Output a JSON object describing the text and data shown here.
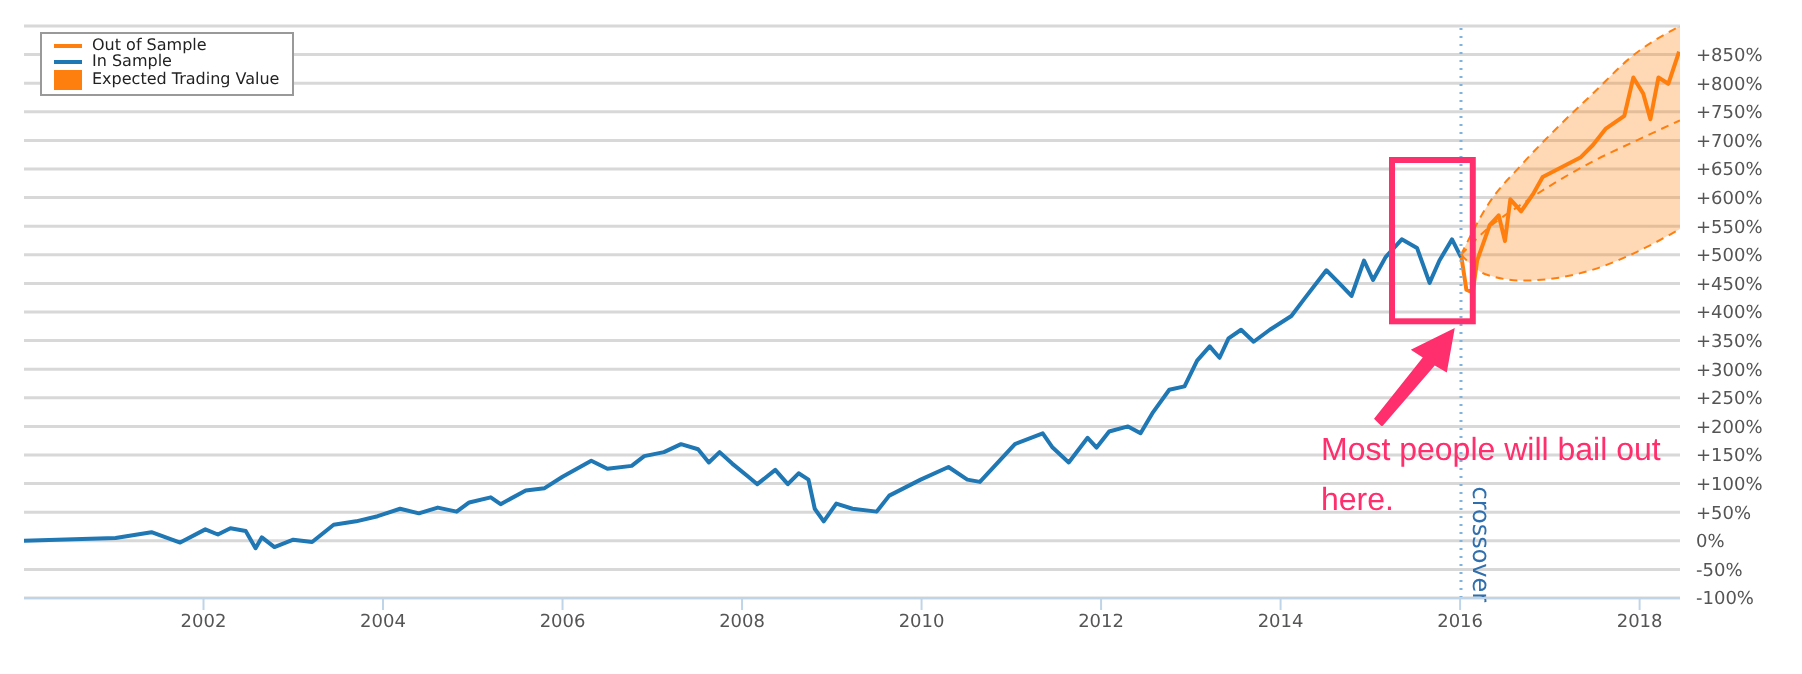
{
  "chart_data": {
    "type": "line",
    "xlim": [
      2000,
      2018.45
    ],
    "xticks": [
      2002,
      2004,
      2006,
      2008,
      2010,
      2012,
      2014,
      2016,
      2018
    ],
    "ylim": [
      -100,
      900
    ],
    "yticks": [
      {
        "value": -100,
        "label": "-100%"
      },
      {
        "value": -50,
        "label": "-50%"
      },
      {
        "value": 0,
        "label": "0%"
      },
      {
        "value": 50,
        "label": "+50%"
      },
      {
        "value": 100,
        "label": "+100%"
      },
      {
        "value": 150,
        "label": "+150%"
      },
      {
        "value": 200,
        "label": "+200%"
      },
      {
        "value": 250,
        "label": "+250%"
      },
      {
        "value": 300,
        "label": "+300%"
      },
      {
        "value": 350,
        "label": "+350%"
      },
      {
        "value": 400,
        "label": "+400%"
      },
      {
        "value": 450,
        "label": "+450%"
      },
      {
        "value": 500,
        "label": "+500%"
      },
      {
        "value": 550,
        "label": "+550%"
      },
      {
        "value": 600,
        "label": "+600%"
      },
      {
        "value": 650,
        "label": "+650%"
      },
      {
        "value": 700,
        "label": "+700%"
      },
      {
        "value": 750,
        "label": "+750%"
      },
      {
        "value": 800,
        "label": "+800%"
      },
      {
        "value": 850,
        "label": "+850%"
      },
      {
        "value": 900,
        "label": null
      }
    ],
    "grid": "y",
    "legend": "top left",
    "marker": "none",
    "series": [
      {
        "name": "Out of Sample",
        "color": "#ff7f0e",
        "x": [
          2016.01,
          2016.07,
          2016.14,
          2016.19,
          2016.33,
          2016.43,
          2016.5,
          2016.56,
          2016.68,
          2016.82,
          2016.92,
          2017.13,
          2017.34,
          2017.48,
          2017.62,
          2017.83,
          2017.93,
          2018.04,
          2018.12,
          2018.21,
          2018.32,
          2018.44
        ],
        "values": [
          501,
          439,
          434,
          490,
          552,
          569,
          524,
          597,
          576,
          608,
          636,
          653,
          670,
          692,
          720,
          743,
          810,
          782,
          737,
          810,
          799,
          855
        ]
      },
      {
        "name": "In Sample",
        "color": "#1f77b4",
        "x": [
          2000,
          2001.02,
          2001.42,
          2001.74,
          2002.02,
          2002.16,
          2002.3,
          2002.47,
          2002.58,
          2002.65,
          2002.79,
          2003.0,
          2003.21,
          2003.45,
          2003.7,
          2003.94,
          2004.19,
          2004.4,
          2004.61,
          2004.82,
          2004.96,
          2005.2,
          2005.31,
          2005.59,
          2005.8,
          2006.0,
          2006.32,
          2006.5,
          2006.77,
          2006.91,
          2007.13,
          2007.32,
          2007.51,
          2007.63,
          2007.75,
          2007.89,
          2008.07,
          2008.17,
          2008.37,
          2008.51,
          2008.63,
          2008.74,
          2008.81,
          2008.91,
          2009.05,
          2009.23,
          2009.5,
          2009.64,
          2009.99,
          2010.3,
          2010.51,
          2010.65,
          2011.04,
          2011.35,
          2011.46,
          2011.64,
          2011.85,
          2011.95,
          2012.09,
          2012.3,
          2012.44,
          2012.58,
          2012.76,
          2012.93,
          2013.07,
          2013.21,
          2013.32,
          2013.42,
          2013.56,
          2013.7,
          2013.88,
          2014.12,
          2014.26,
          2014.51,
          2014.65,
          2014.79,
          2014.93,
          2015.03,
          2015.17,
          2015.35,
          2015.52,
          2015.66,
          2015.77,
          2015.91,
          2016.01
        ],
        "values": [
          0,
          5,
          15,
          -3,
          20,
          11,
          22,
          17,
          -13,
          6,
          -11,
          2,
          -2,
          28,
          34,
          43,
          56,
          48,
          58,
          51,
          67,
          76,
          64,
          88,
          92,
          112,
          140,
          126,
          131,
          148,
          155,
          169,
          160,
          137,
          155,
          135,
          112,
          99,
          124,
          99,
          118,
          107,
          56,
          34,
          65,
          56,
          51,
          79,
          107,
          129,
          107,
          103,
          169,
          188,
          163,
          137,
          180,
          163,
          191,
          200,
          188,
          225,
          264,
          270,
          315,
          340,
          320,
          354,
          369,
          348,
          369,
          393,
          422,
          473,
          451,
          428,
          490,
          456,
          496,
          527,
          512,
          451,
          490,
          527,
          496
        ]
      },
      {
        "name": "Expected Trading Value",
        "type": "line",
        "color": "#ff7f0e",
        "line_style": "dashed",
        "x": [
          2016.01,
          2016.3,
          2016.7,
          2017.1,
          2017.5,
          2017.9,
          2018.45
        ],
        "values": [
          500,
          545,
          590,
          630,
          665,
          695,
          735
        ],
        "lower": [
          500,
          465,
          455,
          460,
          475,
          500,
          545
        ],
        "upper": [
          500,
          585,
          660,
          725,
          785,
          845,
          900
        ]
      },
      {
        "type": "line",
        "color": "#ff7f0e",
        "line_style": "dashed",
        "x": [
          2016.01,
          2016.3,
          2016.7,
          2017.1,
          2017.5,
          2017.9,
          2018.45
        ],
        "values": [
          500,
          585,
          660,
          725,
          785,
          845,
          900
        ]
      },
      {
        "type": "line",
        "color": "#ff7f0e",
        "line_style": "dashed",
        "x": [
          2016.01,
          2016.3,
          2016.7,
          2017.1,
          2017.5,
          2017.9,
          2018.45
        ],
        "values": [
          500,
          465,
          455,
          460,
          475,
          500,
          545
        ]
      }
    ],
    "ref_lines": [
      {
        "axis": "x",
        "value": 2016.01,
        "label": "crossover",
        "color": "#7fb2dd",
        "line_style": "dotted"
      }
    ],
    "annotations": [
      "Most people will bail out here."
    ]
  }
}
